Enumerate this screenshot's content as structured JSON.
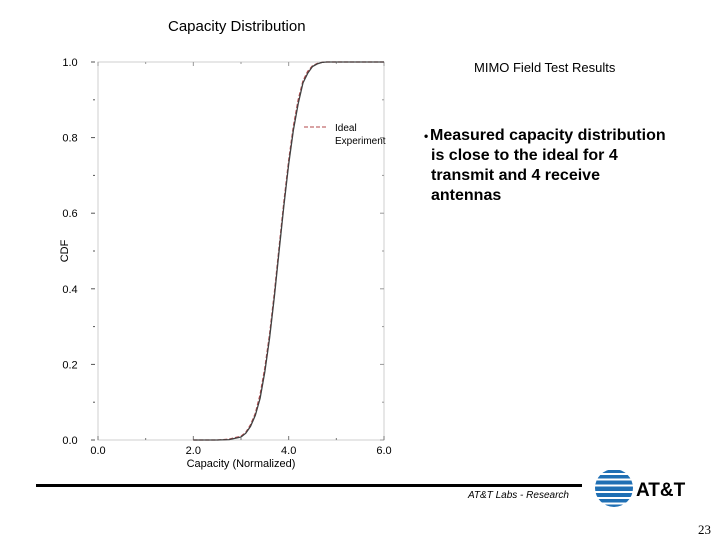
{
  "slide": {
    "subtitle": "MIMO Field Test Results",
    "bullet": "Measured capacity distribution is close to the ideal for 4 transmit and 4 receive antennas",
    "footer": "AT&T Labs - Research",
    "page_number": "23",
    "logo_text": "AT&T"
  },
  "chart_data": {
    "type": "line",
    "title": "Capacity Distribution",
    "xlabel": "Capacity (Normalized)",
    "ylabel": "CDF",
    "xlim": [
      0,
      6
    ],
    "ylim": [
      0,
      1
    ],
    "x_ticks": [
      "0.0",
      "2.0",
      "4.0",
      "6.0"
    ],
    "y_ticks": [
      "0.0",
      "0.2",
      "0.4",
      "0.6",
      "0.8",
      "1.0"
    ],
    "grid": false,
    "legend_position": "top-right",
    "series": [
      {
        "name": "Ideal",
        "style": "dashed",
        "color": "#b3474a",
        "x": [
          2.0,
          2.5,
          2.75,
          3.0,
          3.1,
          3.2,
          3.3,
          3.4,
          3.5,
          3.6,
          3.7,
          3.8,
          3.9,
          4.0,
          4.1,
          4.2,
          4.3,
          4.4,
          4.5,
          4.6,
          4.7,
          4.8,
          5.0,
          6.0
        ],
        "y": [
          0.0,
          0.0,
          0.002,
          0.01,
          0.02,
          0.04,
          0.07,
          0.12,
          0.19,
          0.28,
          0.39,
          0.51,
          0.63,
          0.74,
          0.83,
          0.9,
          0.95,
          0.975,
          0.99,
          0.996,
          0.999,
          1.0,
          1.0,
          1.0
        ]
      },
      {
        "name": "Experiment",
        "style": "solid",
        "color": "#404040",
        "x": [
          2.0,
          2.5,
          2.75,
          3.0,
          3.1,
          3.2,
          3.3,
          3.4,
          3.5,
          3.6,
          3.7,
          3.8,
          3.9,
          4.0,
          4.1,
          4.2,
          4.3,
          4.4,
          4.5,
          4.6,
          4.7,
          4.8,
          5.0,
          6.0
        ],
        "y": [
          0.0,
          0.0,
          0.001,
          0.008,
          0.018,
          0.036,
          0.065,
          0.11,
          0.18,
          0.27,
          0.38,
          0.5,
          0.62,
          0.73,
          0.82,
          0.89,
          0.945,
          0.97,
          0.988,
          0.995,
          0.999,
          1.0,
          1.0,
          1.0
        ]
      }
    ]
  }
}
